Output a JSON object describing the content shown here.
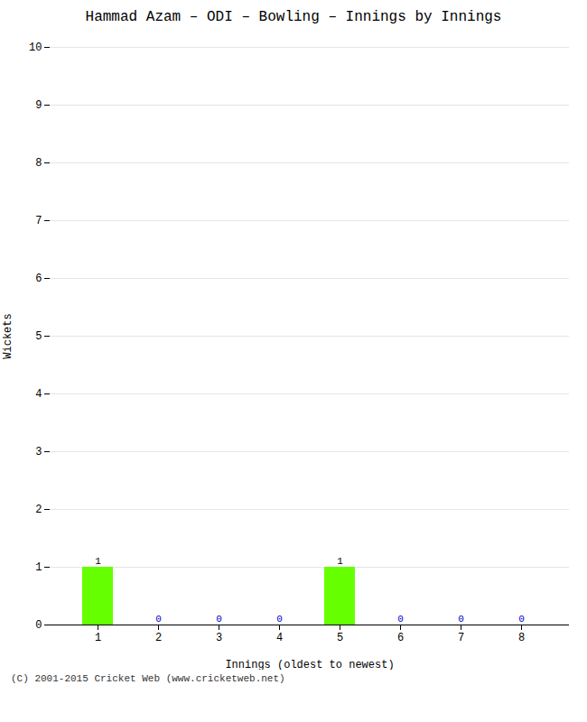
{
  "chart_data": {
    "type": "bar",
    "title": "Hammad Azam – ODI – Bowling – Innings by Innings",
    "xlabel": "Innings (oldest to newest)",
    "ylabel": "Wickets",
    "categories": [
      "1",
      "2",
      "3",
      "4",
      "5",
      "6",
      "7",
      "8"
    ],
    "values": [
      1,
      0,
      0,
      0,
      1,
      0,
      0,
      0
    ],
    "color": "#66ff00",
    "ylim": [
      0,
      10
    ],
    "yticks": [
      0,
      1,
      2,
      3,
      4,
      5,
      6,
      7,
      8,
      9,
      10
    ],
    "grid": true,
    "data_labels": true,
    "caption": "(C) 2001-2015 Cricket Web (www.cricketweb.net)"
  }
}
